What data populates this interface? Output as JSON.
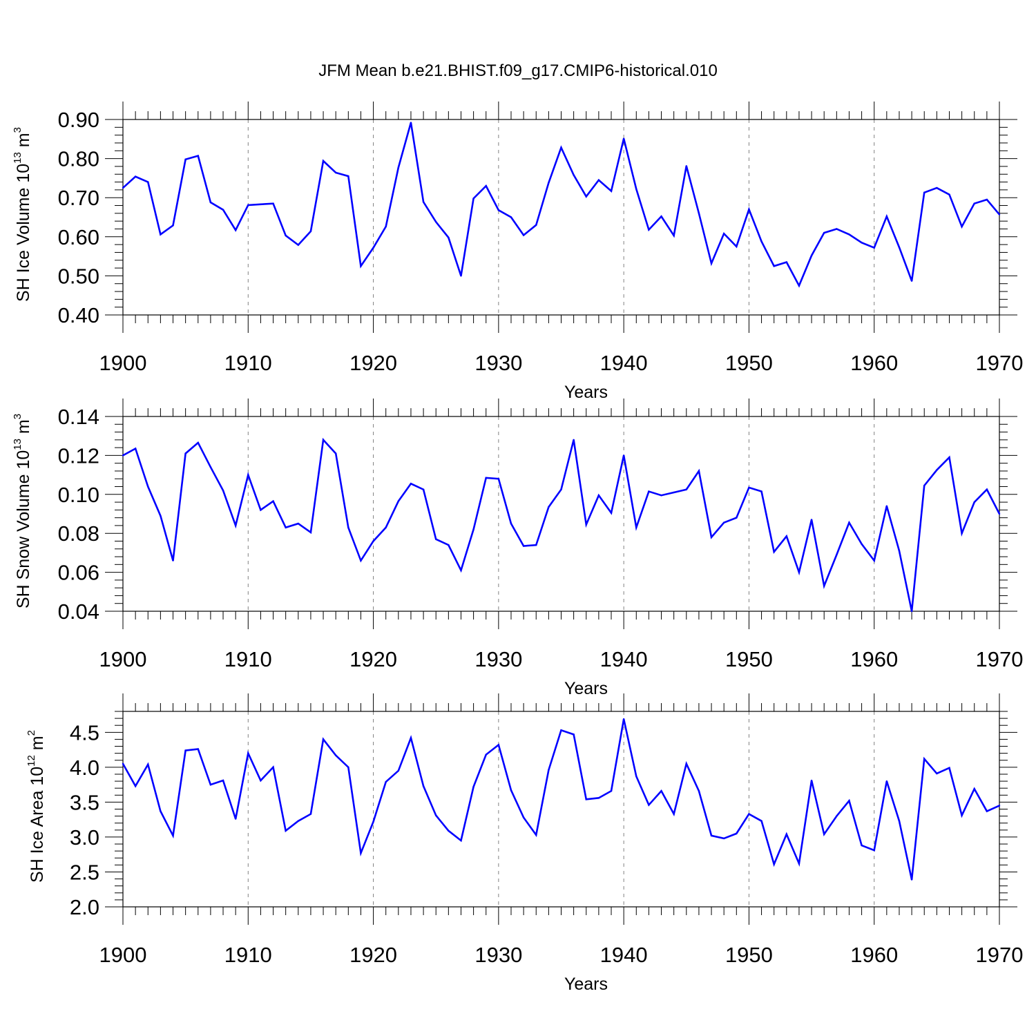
{
  "title": "JFM Mean b.e21.BHIST.f09_g17.CMIP6-historical.010",
  "colors": {
    "line": "#0000ff",
    "axis": "#000000",
    "grid": "#808080",
    "background": "#ffffff"
  },
  "chart_data": [
    {
      "type": "line",
      "xlabel": "Years",
      "ylabel": {
        "main": "SH Ice Volume 10",
        "sup": "13",
        "unit": " m",
        "unit_sup": "3"
      },
      "xlim": [
        1900,
        1970
      ],
      "ylim": [
        0.4,
        0.9
      ],
      "yticks": [
        0.4,
        0.5,
        0.6,
        0.7,
        0.8,
        0.9
      ],
      "ytick_labels": [
        "0.40",
        "0.50",
        "0.60",
        "0.70",
        "0.80",
        "0.90"
      ],
      "xticks": [
        1900,
        1910,
        1920,
        1930,
        1940,
        1950,
        1960,
        1970
      ],
      "xtick_labels": [
        "1900",
        "1910",
        "1920",
        "1930",
        "1940",
        "1950",
        "1960",
        "1970"
      ],
      "grid": "dashed vertical lines at decades",
      "x": [
        1900,
        1901,
        1902,
        1903,
        1904,
        1905,
        1906,
        1907,
        1908,
        1909,
        1910,
        1911,
        1912,
        1913,
        1914,
        1915,
        1916,
        1917,
        1918,
        1919,
        1920,
        1921,
        1922,
        1923,
        1924,
        1925,
        1926,
        1927,
        1928,
        1929,
        1930,
        1931,
        1932,
        1933,
        1934,
        1935,
        1936,
        1937,
        1938,
        1939,
        1940,
        1941,
        1942,
        1943,
        1944,
        1945,
        1946,
        1947,
        1948,
        1949,
        1950,
        1951,
        1952,
        1953,
        1954,
        1955,
        1956,
        1957,
        1958,
        1959,
        1960,
        1961,
        1962,
        1963,
        1964,
        1965,
        1966,
        1967,
        1968,
        1969,
        1970
      ],
      "values": [
        0.725,
        0.754,
        0.74,
        0.606,
        0.629,
        0.798,
        0.807,
        0.688,
        0.669,
        0.617,
        0.681,
        0.683,
        0.685,
        0.603,
        0.579,
        0.614,
        0.794,
        0.764,
        0.755,
        0.525,
        0.572,
        0.626,
        0.777,
        0.892,
        0.689,
        0.638,
        0.598,
        0.5,
        0.698,
        0.73,
        0.668,
        0.65,
        0.604,
        0.63,
        0.738,
        0.828,
        0.758,
        0.703,
        0.745,
        0.717,
        0.851,
        0.722,
        0.618,
        0.652,
        0.603,
        0.781,
        0.66,
        0.532,
        0.608,
        0.575,
        0.67,
        0.588,
        0.525,
        0.535,
        0.475,
        0.552,
        0.61,
        0.62,
        0.606,
        0.585,
        0.572,
        0.652,
        0.573,
        0.487,
        0.713,
        0.725,
        0.708,
        0.626,
        0.685,
        0.695,
        0.657
      ]
    },
    {
      "type": "line",
      "xlabel": "Years",
      "ylabel": {
        "main": "SH Snow Volume 10",
        "sup": "13",
        "unit": " m",
        "unit_sup": "3"
      },
      "xlim": [
        1900,
        1970
      ],
      "ylim": [
        0.04,
        0.14
      ],
      "yticks": [
        0.04,
        0.06,
        0.08,
        0.1,
        0.12,
        0.14
      ],
      "ytick_labels": [
        "0.04",
        "0.06",
        "0.08",
        "0.10",
        "0.12",
        "0.14"
      ],
      "xticks": [
        1900,
        1910,
        1920,
        1930,
        1940,
        1950,
        1960,
        1970
      ],
      "xtick_labels": [
        "1900",
        "1910",
        "1920",
        "1930",
        "1940",
        "1950",
        "1960",
        "1970"
      ],
      "grid": "dashed vertical lines at decades",
      "x": [
        1900,
        1901,
        1902,
        1903,
        1904,
        1905,
        1906,
        1907,
        1908,
        1909,
        1910,
        1911,
        1912,
        1913,
        1914,
        1915,
        1916,
        1917,
        1918,
        1919,
        1920,
        1921,
        1922,
        1923,
        1924,
        1925,
        1926,
        1927,
        1928,
        1929,
        1930,
        1931,
        1932,
        1933,
        1934,
        1935,
        1936,
        1937,
        1938,
        1939,
        1940,
        1941,
        1942,
        1943,
        1944,
        1945,
        1946,
        1947,
        1948,
        1949,
        1950,
        1951,
        1952,
        1953,
        1954,
        1955,
        1956,
        1957,
        1958,
        1959,
        1960,
        1961,
        1962,
        1963,
        1964,
        1965,
        1966,
        1967,
        1968,
        1969,
        1970
      ],
      "values": [
        0.12,
        0.1235,
        0.104,
        0.089,
        0.066,
        0.121,
        0.1265,
        0.114,
        0.102,
        0.084,
        0.11,
        0.092,
        0.0965,
        0.083,
        0.085,
        0.0805,
        0.128,
        0.121,
        0.083,
        0.066,
        0.076,
        0.083,
        0.0965,
        0.1055,
        0.1025,
        0.077,
        0.074,
        0.061,
        0.082,
        0.1085,
        0.108,
        0.085,
        0.0735,
        0.074,
        0.0935,
        0.1025,
        0.128,
        0.0845,
        0.0995,
        0.0905,
        0.12,
        0.083,
        0.1015,
        0.0995,
        0.101,
        0.1025,
        0.112,
        0.078,
        0.0855,
        0.088,
        0.1035,
        0.1015,
        0.0705,
        0.0785,
        0.06,
        0.087,
        0.053,
        0.069,
        0.0855,
        0.0745,
        0.066,
        0.094,
        0.071,
        0.04,
        0.1045,
        0.1125,
        0.119,
        0.08,
        0.096,
        0.1025,
        0.09
      ]
    },
    {
      "type": "line",
      "xlabel": "Years",
      "ylabel": {
        "main": "SH Ice Area 10",
        "sup": "12",
        "unit": " m",
        "unit_sup": "2"
      },
      "xlim": [
        1900,
        1970
      ],
      "ylim": [
        2.0,
        4.8
      ],
      "yticks": [
        2.0,
        2.5,
        3.0,
        3.5,
        4.0,
        4.5
      ],
      "ytick_labels": [
        "2.0",
        "2.5",
        "3.0",
        "3.5",
        "4.0",
        "4.5"
      ],
      "xticks": [
        1900,
        1910,
        1920,
        1930,
        1940,
        1950,
        1960,
        1970
      ],
      "xtick_labels": [
        "1900",
        "1910",
        "1920",
        "1930",
        "1940",
        "1950",
        "1960",
        "1970"
      ],
      "grid": "dashed vertical lines at decades",
      "x": [
        1900,
        1901,
        1902,
        1903,
        1904,
        1905,
        1906,
        1907,
        1908,
        1909,
        1910,
        1911,
        1912,
        1913,
        1914,
        1915,
        1916,
        1917,
        1918,
        1919,
        1920,
        1921,
        1922,
        1923,
        1924,
        1925,
        1926,
        1927,
        1928,
        1929,
        1930,
        1931,
        1932,
        1933,
        1934,
        1935,
        1936,
        1937,
        1938,
        1939,
        1940,
        1941,
        1942,
        1943,
        1944,
        1945,
        1946,
        1947,
        1948,
        1949,
        1950,
        1951,
        1952,
        1953,
        1954,
        1955,
        1956,
        1957,
        1958,
        1959,
        1960,
        1961,
        1962,
        1963,
        1964,
        1965,
        1966,
        1967,
        1968,
        1969,
        1970
      ],
      "values": [
        4.05,
        3.73,
        4.04,
        3.37,
        3.02,
        4.24,
        4.26,
        3.75,
        3.81,
        3.26,
        4.2,
        3.81,
        4.0,
        3.09,
        3.23,
        3.33,
        4.4,
        4.17,
        4.0,
        2.77,
        3.22,
        3.79,
        3.95,
        4.42,
        3.73,
        3.31,
        3.09,
        2.95,
        3.72,
        4.18,
        4.32,
        3.67,
        3.28,
        3.03,
        3.96,
        4.53,
        4.47,
        3.54,
        3.56,
        3.66,
        4.69,
        3.87,
        3.46,
        3.66,
        3.33,
        4.05,
        3.66,
        3.02,
        2.98,
        3.05,
        3.33,
        3.23,
        2.61,
        3.04,
        2.62,
        3.81,
        3.04,
        3.3,
        3.52,
        2.88,
        2.81,
        3.8,
        3.23,
        2.39,
        4.12,
        3.91,
        3.99,
        3.31,
        3.69,
        3.37,
        3.45
      ]
    }
  ]
}
